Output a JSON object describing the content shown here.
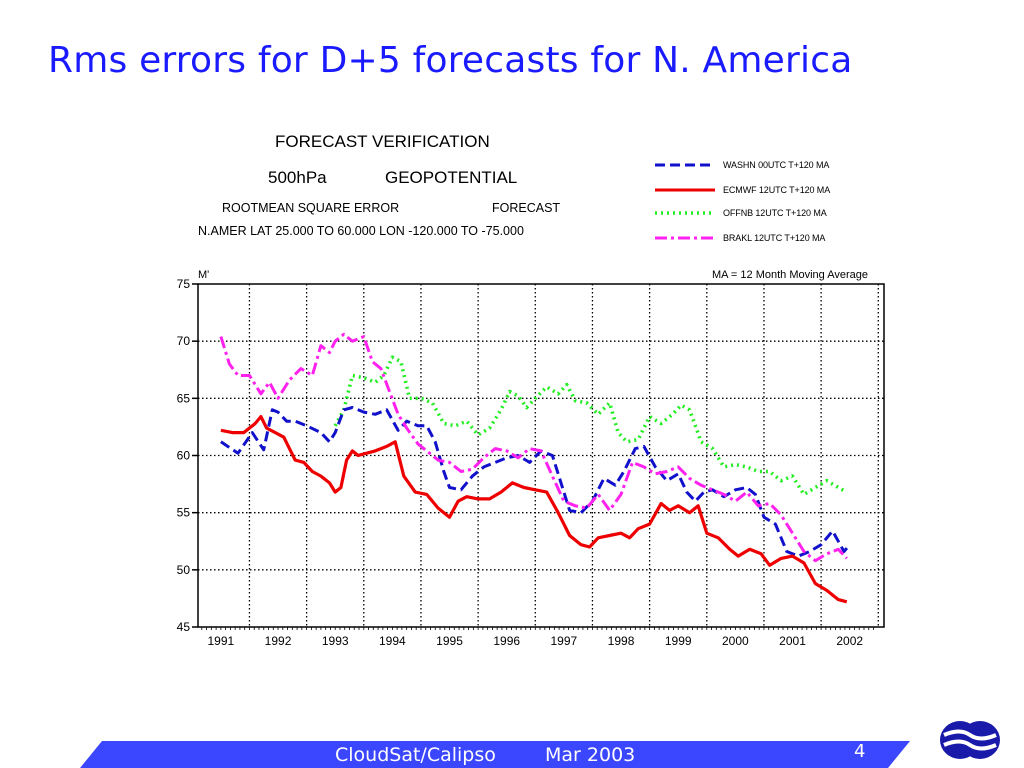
{
  "slide": {
    "title": "Rms errors for D+5 forecasts for N. America",
    "footer_text": "CloudSat/Calipso",
    "footer_date": "Mar 2003",
    "page_number": "4",
    "accent_color": "#1a1aff",
    "footer_color": "#3b46ff",
    "logo_icon": "ecmwf-logo-icon"
  },
  "chart_header": {
    "line1": "FORECAST  VERIFICATION",
    "line2a": "500hPa",
    "line2b": "GEOPOTENTIAL",
    "line3a": "ROOTMEAN SQUARE ERROR",
    "line3b": "FORECAST",
    "line4": "N.AMER    LAT  25.000  TO  60.000   LON -120.000  TO  -75.000"
  },
  "chart_data": {
    "type": "line",
    "title": "FORECAST  VERIFICATION",
    "ylabel": "M'",
    "xlabel": "",
    "ylim": [
      45,
      75
    ],
    "yticks": [
      45,
      50,
      55,
      60,
      65,
      70,
      75
    ],
    "xlim": [
      1990.6,
      2002.6
    ],
    "xticks": [
      "1991",
      "1992",
      "1993",
      "1994",
      "1995",
      "1996",
      "1997",
      "1998",
      "1999",
      "2000",
      "2001",
      "2002"
    ],
    "grid": true,
    "legend_position": "top-right",
    "annotation": "MA =  12 Month    Moving  Average",
    "series": [
      {
        "name": "WASHN 00UTC T+120 MA",
        "color": "#1111cc",
        "style": "dashed",
        "x": [
          1991.0,
          1991.3,
          1991.55,
          1991.75,
          1991.9,
          1992.0,
          1992.15,
          1992.3,
          1992.5,
          1992.75,
          1992.9,
          1993.0,
          1993.15,
          1993.3,
          1993.5,
          1993.7,
          1993.9,
          1994.1,
          1994.25,
          1994.45,
          1994.6,
          1994.75,
          1994.9,
          1995.0,
          1995.2,
          1995.4,
          1995.6,
          1995.8,
          1996.0,
          1996.2,
          1996.4,
          1996.6,
          1996.8,
          1996.95,
          1997.1,
          1997.3,
          1997.5,
          1997.7,
          1997.9,
          1998.05,
          1998.25,
          1998.4,
          1998.6,
          1998.8,
          1999.0,
          1999.15,
          1999.3,
          1999.45,
          1999.6,
          1999.8,
          2000.0,
          2000.2,
          2000.35,
          2000.5,
          2000.7,
          2000.9,
          2001.1,
          2001.3,
          2001.5,
          2001.7,
          2001.9,
          2002.0
        ],
        "y": [
          61.2,
          60.2,
          62.0,
          60.5,
          64.0,
          63.8,
          63.0,
          63.0,
          62.6,
          62.0,
          61.2,
          62.0,
          64.0,
          64.2,
          63.8,
          63.6,
          64.0,
          62.2,
          63.0,
          62.6,
          62.6,
          61.2,
          58.6,
          57.2,
          57.0,
          58.2,
          59.0,
          59.4,
          59.8,
          60.0,
          59.4,
          60.4,
          60.0,
          57.6,
          55.2,
          55.0,
          56.0,
          58.0,
          57.4,
          58.6,
          60.6,
          60.8,
          59.0,
          57.8,
          58.4,
          56.8,
          56.0,
          56.8,
          57.0,
          56.4,
          57.0,
          57.2,
          56.6,
          54.6,
          54.0,
          51.6,
          51.2,
          51.6,
          52.2,
          53.4,
          51.6,
          52.2
        ]
      },
      {
        "name": "ECMWF 12UTC T+120 MA",
        "color": "#ee0000",
        "style": "solid",
        "x": [
          1991.0,
          1991.2,
          1991.4,
          1991.6,
          1991.7,
          1991.8,
          1991.95,
          1992.1,
          1992.3,
          1992.45,
          1992.6,
          1992.75,
          1992.9,
          1993.0,
          1993.1,
          1993.2,
          1993.3,
          1993.4,
          1993.55,
          1993.7,
          1993.9,
          1994.05,
          1994.2,
          1994.4,
          1994.6,
          1994.8,
          1995.0,
          1995.15,
          1995.3,
          1995.5,
          1995.7,
          1995.9,
          1996.1,
          1996.3,
          1996.5,
          1996.7,
          1996.9,
          1997.1,
          1997.3,
          1997.45,
          1997.6,
          1997.8,
          1998.0,
          1998.15,
          1998.3,
          1998.5,
          1998.7,
          1998.85,
          1999.0,
          1999.2,
          1999.35,
          1999.5,
          1999.7,
          1999.9,
          2000.05,
          2000.25,
          2000.45,
          2000.6,
          2000.8,
          2001.0,
          2001.2,
          2001.4,
          2001.6,
          2001.8,
          2001.95
        ],
        "y": [
          62.2,
          62.0,
          62.0,
          62.8,
          63.4,
          62.4,
          62.0,
          61.6,
          59.6,
          59.4,
          58.6,
          58.2,
          57.6,
          56.8,
          57.2,
          59.6,
          60.4,
          60.0,
          60.2,
          60.4,
          60.8,
          61.2,
          58.2,
          56.8,
          56.6,
          55.4,
          54.6,
          56.0,
          56.4,
          56.2,
          56.2,
          56.8,
          57.6,
          57.2,
          57.0,
          56.8,
          55.0,
          53.0,
          52.2,
          52.0,
          52.8,
          53.0,
          53.2,
          52.8,
          53.6,
          54.0,
          55.8,
          55.2,
          55.6,
          55.0,
          55.6,
          53.2,
          52.8,
          51.8,
          51.2,
          51.8,
          51.4,
          50.4,
          51.0,
          51.2,
          50.6,
          48.8,
          48.2,
          47.4,
          47.2
        ]
      },
      {
        "name": "OFFNB 12UTC T+120 MA",
        "color": "#22ee22",
        "style": "dotted",
        "x": [
          1993.0,
          1993.15,
          1993.3,
          1993.5,
          1993.7,
          1993.85,
          1994.0,
          1994.15,
          1994.3,
          1994.5,
          1994.7,
          1994.9,
          1995.1,
          1995.3,
          1995.5,
          1995.7,
          1995.9,
          1996.05,
          1996.2,
          1996.35,
          1996.5,
          1996.7,
          1996.9,
          1997.05,
          1997.2,
          1997.4,
          1997.6,
          1997.8,
          1997.95,
          1998.1,
          1998.3,
          1998.5,
          1998.7,
          1998.9,
          1999.05,
          1999.2,
          1999.4,
          1999.6,
          1999.8,
          2000.0,
          2000.2,
          2000.4,
          2000.6,
          2000.8,
          2001.0,
          2001.2,
          2001.4,
          2001.6,
          2001.8,
          2001.95
        ],
        "y": [
          62.6,
          64.0,
          67.0,
          66.8,
          66.4,
          67.0,
          68.6,
          68.2,
          65.0,
          65.0,
          64.6,
          62.8,
          62.6,
          63.0,
          61.8,
          62.4,
          64.0,
          65.6,
          65.2,
          64.2,
          65.0,
          66.0,
          65.4,
          66.2,
          64.8,
          64.6,
          63.6,
          64.6,
          62.0,
          61.2,
          61.4,
          63.4,
          62.8,
          63.6,
          64.4,
          64.0,
          61.2,
          60.6,
          59.0,
          59.2,
          59.0,
          58.6,
          58.6,
          57.8,
          58.2,
          56.6,
          57.2,
          57.8,
          57.2,
          56.8
        ]
      },
      {
        "name": "BRAKL 12UTC T+120 MA",
        "color": "#ff22ee",
        "style": "dashdot",
        "x": [
          1991.0,
          1991.15,
          1991.3,
          1991.5,
          1991.7,
          1991.85,
          1992.0,
          1992.2,
          1992.4,
          1992.6,
          1992.75,
          1992.9,
          1993.0,
          1993.15,
          1993.3,
          1993.5,
          1993.65,
          1993.8,
          1993.95,
          1994.1,
          1994.25,
          1994.45,
          1994.6,
          1994.8,
          1995.0,
          1995.2,
          1995.4,
          1995.6,
          1995.8,
          1996.0,
          1996.2,
          1996.4,
          1996.6,
          1996.8,
          1997.0,
          1997.2,
          1997.4,
          1997.6,
          1997.8,
          1998.0,
          1998.2,
          1998.4,
          1998.6,
          1998.8,
          1999.0,
          1999.2,
          1999.4,
          1999.6,
          1999.8,
          2000.0,
          2000.2,
          2000.4,
          2000.6,
          2000.8,
          2001.0,
          2001.2,
          2001.4,
          2001.6,
          2001.8,
          2001.95
        ],
        "y": [
          70.4,
          68.0,
          67.0,
          67.0,
          65.4,
          66.4,
          65.0,
          66.6,
          67.6,
          67.0,
          69.6,
          69.0,
          70.0,
          70.6,
          70.0,
          70.4,
          68.2,
          67.6,
          65.6,
          63.6,
          62.4,
          61.0,
          60.4,
          59.6,
          59.4,
          58.6,
          58.8,
          59.8,
          60.6,
          60.4,
          59.8,
          60.6,
          60.4,
          58.2,
          56.0,
          55.6,
          55.4,
          56.6,
          55.2,
          56.6,
          59.4,
          59.0,
          58.4,
          58.6,
          59.0,
          58.0,
          57.4,
          57.0,
          56.6,
          56.0,
          56.8,
          55.6,
          55.8,
          54.8,
          53.2,
          51.6,
          50.8,
          51.4,
          51.8,
          51.0
        ]
      }
    ]
  }
}
